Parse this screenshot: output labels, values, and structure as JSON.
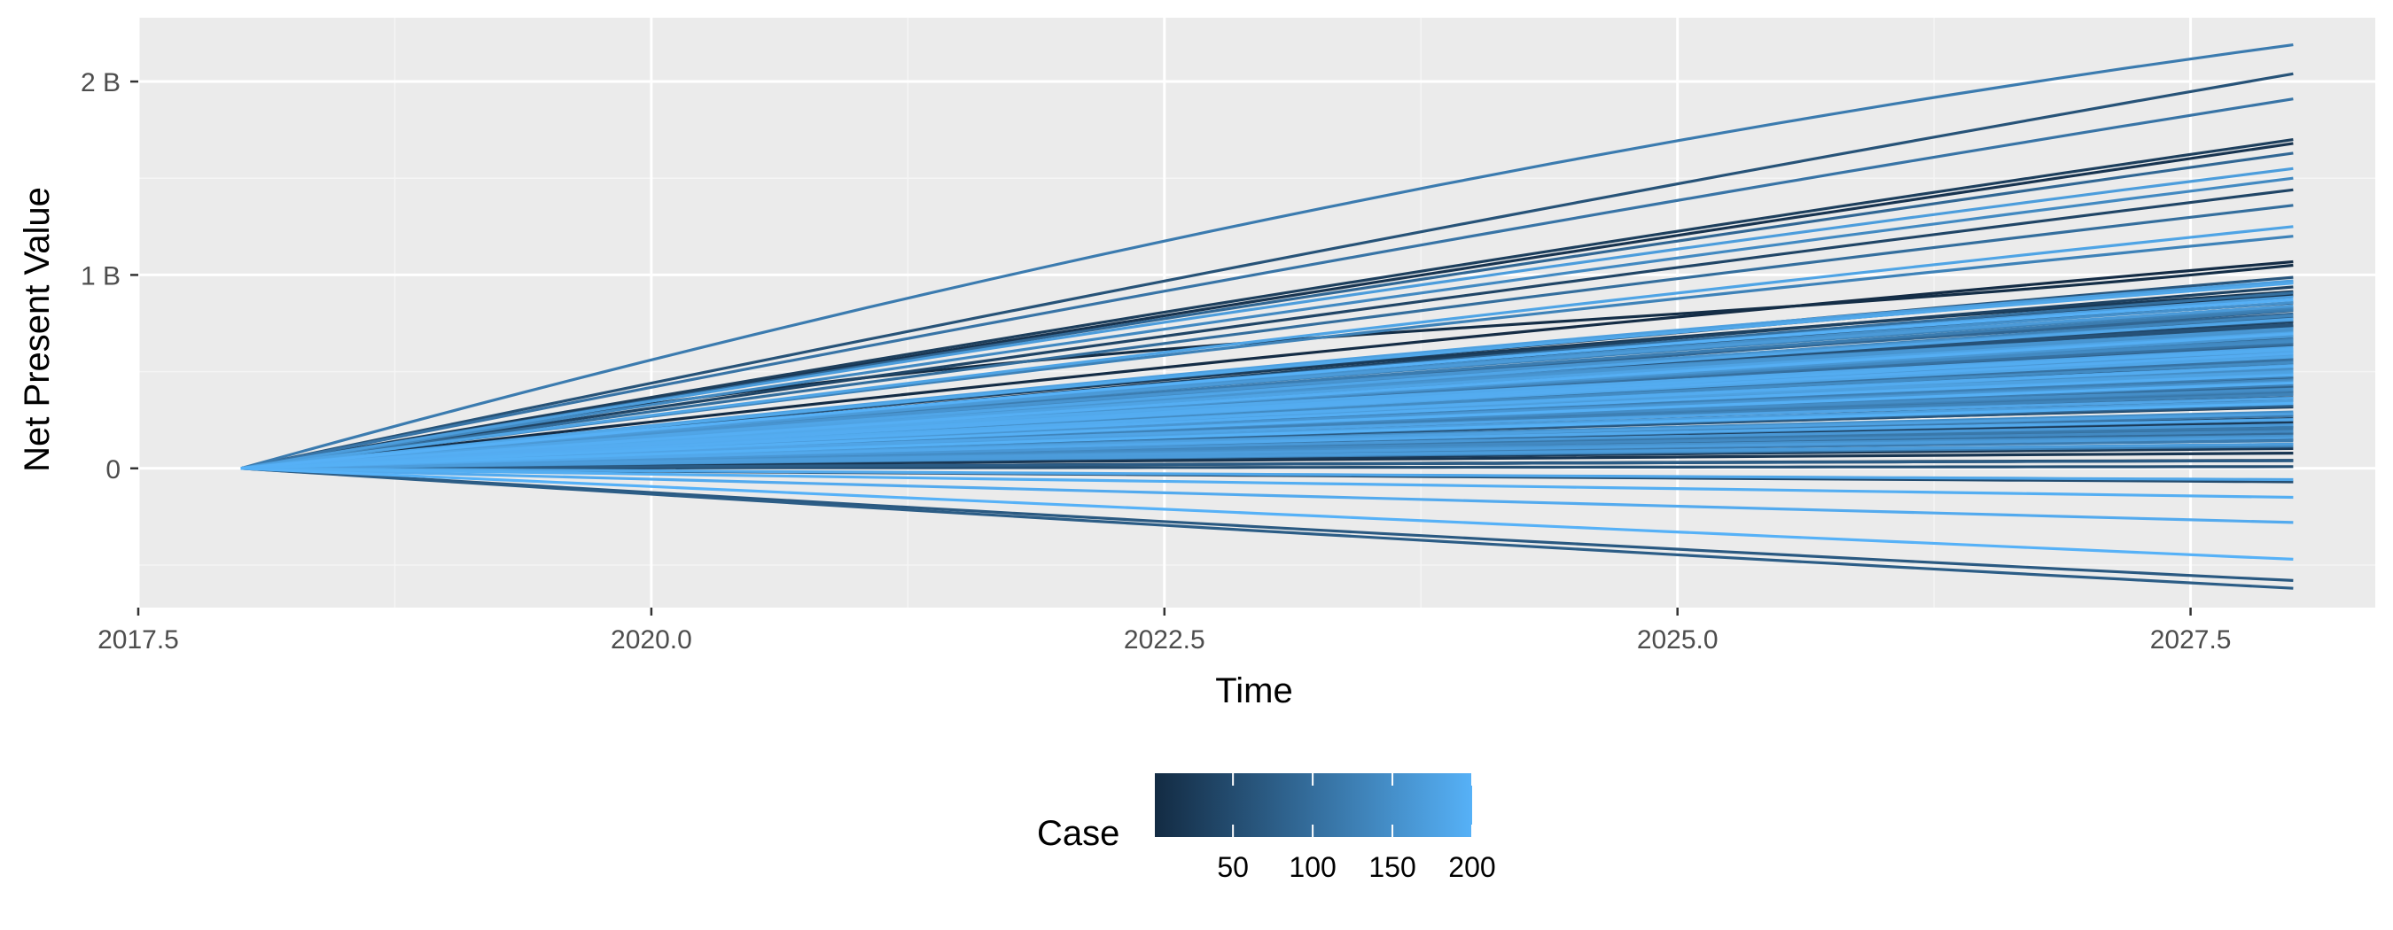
{
  "chart_data": {
    "type": "line",
    "xlabel": "Time",
    "ylabel": "Net Present Value",
    "xlim": [
      2017.5,
      2028.4
    ],
    "ylim": [
      -0.72,
      2.33
    ],
    "x_ticks": [
      {
        "value": 2017.5,
        "label": "2017.5"
      },
      {
        "value": 2020.0,
        "label": "2020.0"
      },
      {
        "value": 2022.5,
        "label": "2022.5"
      },
      {
        "value": 2025.0,
        "label": "2025.0"
      },
      {
        "value": 2027.5,
        "label": "2027.5"
      }
    ],
    "y_ticks": [
      {
        "value": 0,
        "label": "0"
      },
      {
        "value": 1,
        "label": "1 B"
      },
      {
        "value": 2,
        "label": "2 B"
      }
    ],
    "y_unit": "B",
    "x_start": 2018.0,
    "x_end": 2028.0,
    "series_count": 200,
    "highlighted_series": [
      {
        "case": 120,
        "end_value": 2.19,
        "curvature": 0.35
      },
      {
        "case": 60,
        "end_value": 2.04,
        "curvature": 0.1
      },
      {
        "case": 110,
        "end_value": 1.91,
        "curvature": 0.12
      },
      {
        "case": 30,
        "end_value": 1.7,
        "curvature": 0.1
      },
      {
        "case": 15,
        "end_value": 1.68,
        "curvature": 0.08
      },
      {
        "case": 90,
        "end_value": 1.63,
        "curvature": 0.1
      },
      {
        "case": 170,
        "end_value": 1.55,
        "curvature": 0.15
      },
      {
        "case": 140,
        "end_value": 1.5,
        "curvature": 0.12
      },
      {
        "case": 40,
        "end_value": 1.44,
        "curvature": 0.1
      },
      {
        "case": 100,
        "end_value": 1.36,
        "curvature": 0.1
      },
      {
        "case": 180,
        "end_value": 1.25,
        "curvature": 0.12
      },
      {
        "case": 130,
        "end_value": 1.2,
        "curvature": 0.15
      },
      {
        "case": 5,
        "end_value": 1.05,
        "curvature": 1.8
      },
      {
        "case": 190,
        "end_value": -0.28,
        "curvature": 0.0
      },
      {
        "case": 200,
        "end_value": -0.47,
        "curvature": 0.0
      },
      {
        "case": 70,
        "end_value": -0.58,
        "curvature": 0.1
      },
      {
        "case": 75,
        "end_value": -0.62,
        "curvature": 0.1
      },
      {
        "case": 195,
        "end_value": -0.15,
        "curvature": 0.0
      }
    ],
    "bulk_distribution": {
      "min_end_value": -0.22,
      "max_end_value": 1.2,
      "center_end_value": 0.5
    },
    "grid": true,
    "legend": {
      "title": "Case",
      "position": "bottom",
      "type": "colorbar",
      "range": [
        1,
        200
      ],
      "breaks": [
        50,
        100,
        150,
        200
      ],
      "color_low": "#132b43",
      "color_high": "#56b1f7"
    },
    "colors": {
      "panel_background": "#ebebeb",
      "grid_major": "#ffffff",
      "grid_minor": "#f5f5f5"
    }
  }
}
